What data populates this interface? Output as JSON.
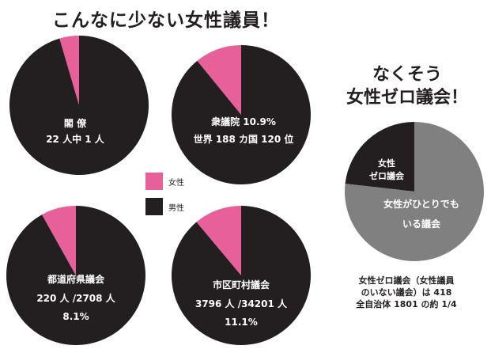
{
  "title": "こんなに少ない女性議員！",
  "side_title": [
    "なくそう",
    "女性ゼロ議会！"
  ],
  "legend": [
    {
      "label": "女性",
      "color": "#e8609a"
    },
    {
      "label": "男性",
      "color": "#231f20"
    }
  ],
  "footnote": [
    "女性ゼロ議会（女性議員",
    "のいない議会）は 418",
    "全自治体 1801 の約 1/4"
  ],
  "colors": {
    "female": "#e8609a",
    "male": "#231f20",
    "zero_council": "#808080",
    "text_light": "#ffffff"
  },
  "chart_data": [
    {
      "type": "pie",
      "title": "閣 僚",
      "labels": [
        "閣 僚",
        "22 人中 1 人"
      ],
      "categories": [
        "女性",
        "男性"
      ],
      "values": [
        1,
        21
      ]
    },
    {
      "type": "pie",
      "title": "衆議院 10.9%",
      "labels": [
        "衆議院 10.9%",
        "世界 188 カ国 120 位"
      ],
      "categories": [
        "女性",
        "男性"
      ],
      "values": [
        10.9,
        89.1
      ]
    },
    {
      "type": "pie",
      "title": "都道府県議会",
      "labels": [
        "都道府県議会",
        "220 人 /2708 人",
        "8.1%"
      ],
      "categories": [
        "女性",
        "男性"
      ],
      "values": [
        220,
        2488
      ]
    },
    {
      "type": "pie",
      "title": "市区町村議会",
      "labels": [
        "市区町村議会",
        "3796 人 /34201 人",
        "11.1%"
      ],
      "categories": [
        "女性",
        "男性"
      ],
      "values": [
        3796,
        30405
      ]
    },
    {
      "type": "pie",
      "title": "",
      "categories": [
        "女性ゼロ議会",
        "女性がひとりでもいる議会"
      ],
      "slice_labels": [
        [
          "女性",
          "ゼロ議会"
        ],
        [
          "女性がひとりでも",
          "いる議会"
        ]
      ],
      "values": [
        418,
        1383
      ]
    }
  ]
}
